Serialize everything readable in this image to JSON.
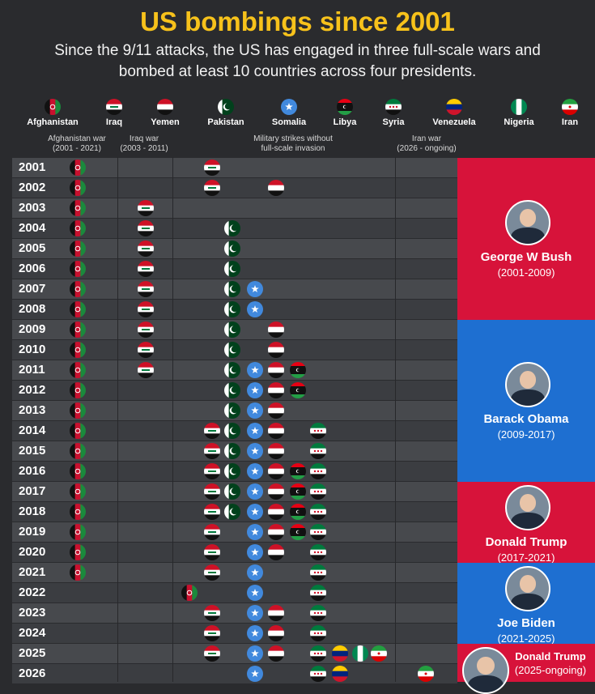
{
  "title": "US bombings since 2001",
  "subtitle": "Since the 9/11 attacks, the US has engaged in three full-scale wars and bombed at least 10 countries across four presidents.",
  "countries": [
    {
      "id": "afghanistan",
      "name": "Afghanistan"
    },
    {
      "id": "iraq",
      "name": "Iraq"
    },
    {
      "id": "yemen",
      "name": "Yemen"
    },
    {
      "id": "pakistan",
      "name": "Pakistan"
    },
    {
      "id": "somalia",
      "name": "Somalia"
    },
    {
      "id": "libya",
      "name": "Libya"
    },
    {
      "id": "syria",
      "name": "Syria"
    },
    {
      "id": "venezuela",
      "name": "Venezuela"
    },
    {
      "id": "nigeria",
      "name": "Nigeria"
    },
    {
      "id": "iran",
      "name": "Iran"
    }
  ],
  "groups": [
    {
      "label": "Afghanistan war",
      "sub": "(2001 - 2021)"
    },
    {
      "label": "Iraq war",
      "sub": "(2003 - 2011)"
    },
    {
      "label": "Military strikes without",
      "sub": "full-scale invasion"
    },
    {
      "label": "Iran war",
      "sub": "(2026 - ongoing)"
    }
  ],
  "presidents": [
    {
      "name": "George W Bush",
      "years": "(2001-2009)",
      "color": "#d7133a",
      "from": 2001,
      "to": 2008
    },
    {
      "name": "Barack Obama",
      "years": "(2009-2017)",
      "color": "#1e6fd1",
      "from": 2009,
      "to": 2016
    },
    {
      "name": "Donald Trump",
      "years": "(2017-2021)",
      "color": "#d7133a",
      "from": 2017,
      "to": 2020
    },
    {
      "name": "Joe Biden",
      "years": "(2021-2025)",
      "color": "#1e6fd1",
      "from": 2021,
      "to": 2024
    },
    {
      "name": "Donald Trump",
      "years": "(2025-ongoing)",
      "color": "#d7133a",
      "from": 2025,
      "to": 2026
    }
  ],
  "chart_data": {
    "type": "table",
    "title": "US bombings since 2001",
    "years": [
      2001,
      2002,
      2003,
      2004,
      2005,
      2006,
      2007,
      2008,
      2009,
      2010,
      2011,
      2012,
      2013,
      2014,
      2015,
      2016,
      2017,
      2018,
      2019,
      2020,
      2021,
      2022,
      2023,
      2024,
      2025,
      2026
    ],
    "rows": [
      {
        "year": 2001,
        "countries": [
          "afghanistan",
          "iraq"
        ]
      },
      {
        "year": 2002,
        "countries": [
          "afghanistan",
          "iraq",
          "yemen"
        ]
      },
      {
        "year": 2003,
        "countries": [
          "afghanistan",
          "iraq"
        ]
      },
      {
        "year": 2004,
        "countries": [
          "afghanistan",
          "iraq",
          "pakistan"
        ]
      },
      {
        "year": 2005,
        "countries": [
          "afghanistan",
          "iraq",
          "pakistan"
        ]
      },
      {
        "year": 2006,
        "countries": [
          "afghanistan",
          "iraq",
          "pakistan"
        ]
      },
      {
        "year": 2007,
        "countries": [
          "afghanistan",
          "iraq",
          "pakistan",
          "somalia"
        ]
      },
      {
        "year": 2008,
        "countries": [
          "afghanistan",
          "iraq",
          "pakistan",
          "somalia"
        ]
      },
      {
        "year": 2009,
        "countries": [
          "afghanistan",
          "iraq",
          "pakistan",
          "yemen"
        ]
      },
      {
        "year": 2010,
        "countries": [
          "afghanistan",
          "iraq",
          "pakistan",
          "yemen"
        ]
      },
      {
        "year": 2011,
        "countries": [
          "afghanistan",
          "iraq",
          "pakistan",
          "somalia",
          "yemen",
          "libya"
        ]
      },
      {
        "year": 2012,
        "countries": [
          "afghanistan",
          "pakistan",
          "somalia",
          "yemen",
          "libya"
        ]
      },
      {
        "year": 2013,
        "countries": [
          "afghanistan",
          "pakistan",
          "somalia",
          "yemen"
        ]
      },
      {
        "year": 2014,
        "countries": [
          "afghanistan",
          "iraq",
          "pakistan",
          "somalia",
          "yemen",
          "syria"
        ]
      },
      {
        "year": 2015,
        "countries": [
          "afghanistan",
          "iraq",
          "pakistan",
          "somalia",
          "yemen",
          "syria"
        ]
      },
      {
        "year": 2016,
        "countries": [
          "afghanistan",
          "iraq",
          "pakistan",
          "somalia",
          "yemen",
          "libya",
          "syria"
        ]
      },
      {
        "year": 2017,
        "countries": [
          "afghanistan",
          "iraq",
          "pakistan",
          "somalia",
          "yemen",
          "libya",
          "syria"
        ]
      },
      {
        "year": 2018,
        "countries": [
          "afghanistan",
          "iraq",
          "pakistan",
          "somalia",
          "yemen",
          "libya",
          "syria"
        ]
      },
      {
        "year": 2019,
        "countries": [
          "afghanistan",
          "iraq",
          "somalia",
          "yemen",
          "libya",
          "syria"
        ]
      },
      {
        "year": 2020,
        "countries": [
          "afghanistan",
          "iraq",
          "somalia",
          "yemen",
          "syria"
        ]
      },
      {
        "year": 2021,
        "countries": [
          "afghanistan",
          "iraq",
          "somalia",
          "syria"
        ]
      },
      {
        "year": 2022,
        "countries": [
          "afghanistan",
          "somalia",
          "syria"
        ]
      },
      {
        "year": 2023,
        "countries": [
          "iraq",
          "somalia",
          "yemen",
          "syria"
        ]
      },
      {
        "year": 2024,
        "countries": [
          "iraq",
          "somalia",
          "yemen",
          "syria"
        ]
      },
      {
        "year": 2025,
        "countries": [
          "iraq",
          "somalia",
          "yemen",
          "syria",
          "venezuela",
          "nigeria",
          "iran"
        ]
      },
      {
        "year": 2026,
        "countries": [
          "somalia",
          "syria",
          "venezuela",
          "iran"
        ]
      }
    ]
  }
}
